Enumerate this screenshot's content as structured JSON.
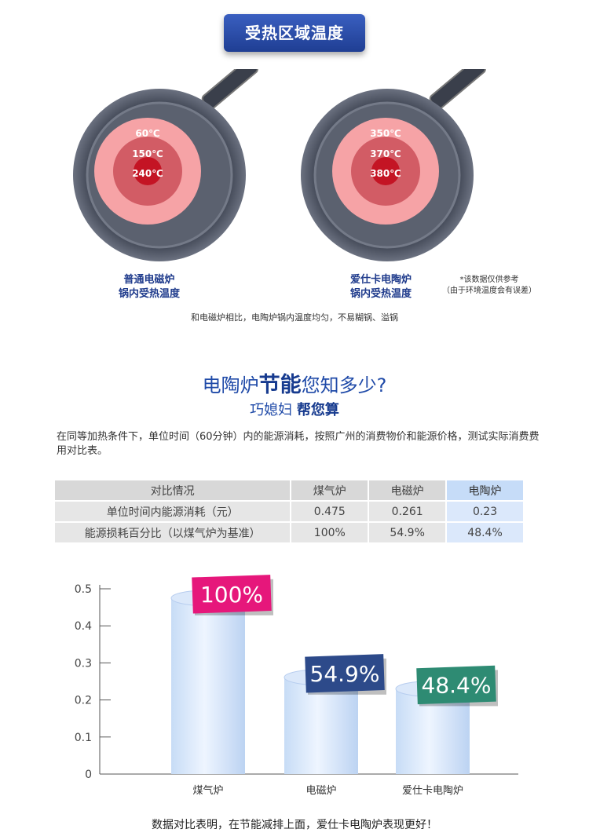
{
  "section_title": "受热区域温度",
  "pans": [
    {
      "temps": [
        "60℃",
        "150℃",
        "240℃"
      ],
      "caption_line1": "普通电磁炉",
      "caption_line2": "锅内受热温度"
    },
    {
      "temps": [
        "350℃",
        "370℃",
        "380℃"
      ],
      "caption_line1": "爱仕卡电陶炉",
      "caption_line2": "锅内受热温度"
    }
  ],
  "note_line1": "*该数据仅供参考",
  "note_line2": "（由于环境温度会有误差）",
  "pan_summary": "和电磁炉相比，电陶炉锅内温度均匀，不易糊锅、溢锅",
  "heading": {
    "part1": "电陶炉",
    "highlight": "节能",
    "part2": "您知多少?",
    "sub1": "巧媳妇",
    "sub2": "帮您算"
  },
  "intro": "在同等加热条件下，单位时间（60分钟）内的能源消耗，按照广州的消费物价和能源价格，测试实际消费费用对比表。",
  "table": {
    "headers": [
      "对比情况",
      "煤气炉",
      "电磁炉",
      "电陶炉"
    ],
    "rows": [
      [
        "单位时间内能源消耗（元）",
        "0.475",
        "0.261",
        "0.23"
      ],
      [
        "能源损耗百分比（以煤气炉为基准）",
        "100%",
        "54.9%",
        "48.4%"
      ]
    ]
  },
  "chart_data": {
    "type": "bar",
    "categories": [
      "煤气炉",
      "电磁炉",
      "爱仕卡电陶炉"
    ],
    "values": [
      0.475,
      0.261,
      0.23
    ],
    "value_labels": [
      "100%",
      "54.9%",
      "48.4%"
    ],
    "label_colors": [
      "#e6177b",
      "#2d4a8a",
      "#2e8b73"
    ],
    "bar_color": "#d6e6fa",
    "yticks": [
      "0",
      "0.1",
      "0.2",
      "0.3",
      "0.4",
      "0.5"
    ],
    "ylim": [
      0,
      0.5
    ]
  },
  "conclusion": "数据对比表明，在节能减排上面，爱仕卡电陶炉表现更好！"
}
